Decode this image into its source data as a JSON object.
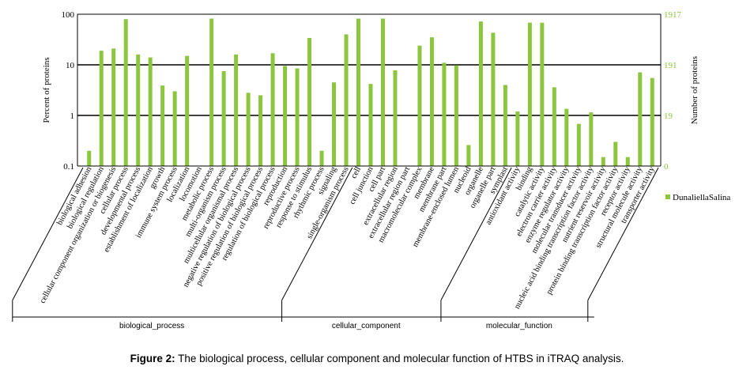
{
  "figure_caption": {
    "label": "Figure 2:",
    "text": " The biological process, cellular component and molecular function of HTBS in iTRAQ analysis."
  },
  "colors": {
    "bar": "#8cc63f",
    "grid": "#000000",
    "right_axis_text": "#8cc63f"
  },
  "chart_data": {
    "type": "bar",
    "ylabel": "Percent of proteins",
    "y2label": "Number of proteins",
    "yscale": "log",
    "ylim": [
      0.1,
      100
    ],
    "yticks": [
      "100",
      "10",
      "1",
      "0.1"
    ],
    "y2ticks": [
      "1917",
      "191",
      "19",
      "0"
    ],
    "legend": {
      "position": "right",
      "entries": [
        "DunaliellaSalina"
      ]
    },
    "categories": [
      "biological adhesion",
      "biological regulation",
      "cellular component organization or biogenesis",
      "cellular process",
      "developmental process",
      "establishment of localization",
      "growth",
      "immune system process",
      "localization",
      "locomotion",
      "metabolic process",
      "multi-organism process",
      "multicellular organismal process",
      "negative regulation of biological process",
      "positive regulation of biological process",
      "regulation of biological process",
      "reproduction",
      "reproductive process",
      "response to stimulus",
      "rhythmic process",
      "signaling",
      "single-organism process",
      "cell",
      "cell junction",
      "cell part",
      "extracellular region",
      "extracellular region part",
      "macromolecular complex",
      "membrane",
      "membrane part",
      "membrane-enclosed lumen",
      "nucleoid",
      "organelle",
      "organelle part",
      "symplast",
      "antioxidant activity",
      "binding",
      "catalytic activity",
      "electron carrier activity",
      "enzyme regulator activity",
      "molecular transducer activity",
      "nucleic acid binding transcription factor activity",
      "nutrient reservoir activity",
      "protein binding transcription factor activity",
      "receptor activity",
      "structural molecule activity",
      "transporter activity"
    ],
    "series": [
      {
        "name": "DunaliellaSalina",
        "values": [
          0.2,
          19,
          21,
          80,
          16,
          14,
          3.9,
          3.0,
          15,
          0,
          82,
          7.5,
          16,
          2.8,
          2.5,
          17,
          9.5,
          8.5,
          34,
          0.2,
          4.5,
          40,
          82,
          4.2,
          82,
          7.8,
          0,
          24,
          35,
          11,
          9.8,
          0.26,
          72,
          43,
          4.0,
          1.2,
          68,
          68,
          3.6,
          1.35,
          0.68,
          1.15,
          0.15,
          0.3,
          0.15,
          7.1,
          5.5
        ]
      }
    ],
    "groups": [
      {
        "name": "biological_process",
        "start": 0,
        "end": 21
      },
      {
        "name": "cellular_component",
        "start": 22,
        "end": 34
      },
      {
        "name": "molecular_function",
        "start": 35,
        "end": 46
      }
    ]
  }
}
